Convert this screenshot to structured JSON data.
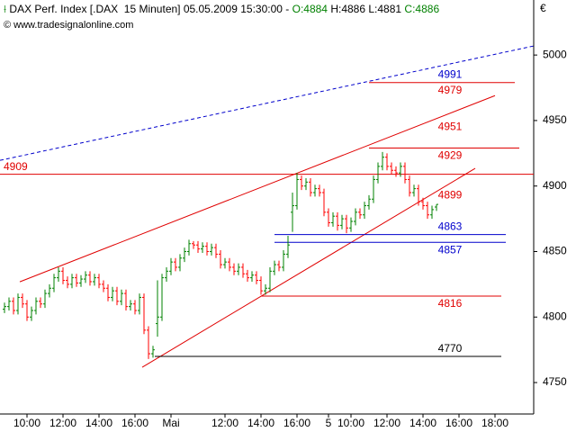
{
  "chart_data": {
    "type": "ohlc",
    "title": "DAX Perf. Index [.DAX  15 Minuten] 05.05.2009 15:30:00 -",
    "header_open": "O:4884",
    "header_high": "H:4886",
    "header_low": "L:4881",
    "header_close": "C:4886",
    "source": "www.tradesignalonline.com",
    "currency": "€",
    "up_color": "#008000",
    "down_color": "#ff0000",
    "x": [
      0,
      1,
      2,
      3,
      4,
      5,
      6,
      7,
      8,
      9,
      10,
      11,
      12,
      13,
      14,
      15,
      16,
      17,
      18,
      19,
      20,
      21,
      22,
      23,
      24,
      25,
      26,
      27,
      28,
      29,
      30,
      31,
      32,
      33,
      34,
      35,
      36,
      37,
      38,
      39,
      40,
      41,
      42,
      43,
      44,
      45,
      46,
      47,
      48,
      49,
      50,
      51,
      52,
      53,
      54,
      55,
      56,
      57,
      58,
      59,
      60,
      61,
      62,
      63,
      64,
      65,
      66,
      67,
      68,
      69,
      70,
      71,
      72,
      73,
      74,
      75,
      76,
      77,
      78,
      79,
      80,
      81,
      82,
      83,
      84,
      85,
      86,
      87,
      88,
      89,
      90,
      91,
      92,
      93,
      94,
      95,
      96
    ],
    "open": [
      4806,
      4808,
      4812,
      4805,
      4815,
      4810,
      4800,
      4805,
      4812,
      4810,
      4818,
      4822,
      4830,
      4835,
      4828,
      4825,
      4830,
      4826,
      4829,
      4832,
      4827,
      4830,
      4825,
      4822,
      4815,
      4820,
      4812,
      4818,
      4808,
      4810,
      4805,
      4815,
      4790,
      4772,
      4795,
      4800,
      4830,
      4835,
      4842,
      4838,
      4845,
      4850,
      4856,
      4855,
      4852,
      4854,
      4850,
      4853,
      4848,
      4840,
      4842,
      4838,
      4835,
      4838,
      4833,
      4830,
      4832,
      4828,
      4820,
      4822,
      4835,
      4840,
      4838,
      4848,
      4880,
      4885,
      4905,
      4900,
      4903,
      4895,
      4898,
      4895,
      4880,
      4872,
      4877,
      4870,
      4875,
      4868,
      4873,
      4880,
      4878,
      4885,
      4890,
      4905,
      4915,
      4922,
      4915,
      4912,
      4910,
      4915,
      4905,
      4895,
      4898,
      4888,
      4885,
      4878,
      4884
    ],
    "high": [
      4811,
      4815,
      4815,
      4818,
      4818,
      4813,
      4808,
      4815,
      4815,
      4821,
      4825,
      4833,
      4838,
      4838,
      4831,
      4833,
      4833,
      4832,
      4835,
      4835,
      4833,
      4833,
      4828,
      4825,
      4823,
      4823,
      4821,
      4821,
      4813,
      4813,
      4818,
      4818,
      4793,
      4778,
      4828,
      4833,
      4838,
      4845,
      4845,
      4848,
      4853,
      4859,
      4858,
      4858,
      4857,
      4857,
      4856,
      4856,
      4851,
      4845,
      4845,
      4841,
      4841,
      4841,
      4836,
      4835,
      4835,
      4831,
      4825,
      4838,
      4843,
      4843,
      4851,
      4862,
      4895,
      4910,
      4908,
      4906,
      4906,
      4901,
      4901,
      4898,
      4883,
      4880,
      4880,
      4878,
      4878,
      4876,
      4883,
      4883,
      4888,
      4893,
      4908,
      4918,
      4926,
      4925,
      4918,
      4915,
      4918,
      4918,
      4908,
      4901,
      4901,
      4891,
      4888,
      4885,
      4886
    ],
    "low": [
      4803,
      4805,
      4802,
      4802,
      4807,
      4797,
      4797,
      4802,
      4807,
      4807,
      4815,
      4819,
      4827,
      4825,
      4822,
      4822,
      4823,
      4823,
      4826,
      4824,
      4824,
      4822,
      4819,
      4812,
      4812,
      4809,
      4809,
      4805,
      4805,
      4802,
      4802,
      4787,
      4768,
      4769,
      4785,
      4797,
      4827,
      4832,
      4835,
      4835,
      4842,
      4847,
      4852,
      4849,
      4849,
      4847,
      4847,
      4845,
      4837,
      4837,
      4835,
      4832,
      4832,
      4830,
      4827,
      4827,
      4825,
      4817,
      4817,
      4819,
      4832,
      4835,
      4835,
      4845,
      4865,
      4882,
      4897,
      4897,
      4892,
      4892,
      4892,
      4877,
      4869,
      4869,
      4866,
      4867,
      4864,
      4865,
      4870,
      4875,
      4875,
      4882,
      4887,
      4902,
      4912,
      4912,
      4909,
      4907,
      4907,
      4902,
      4892,
      4892,
      4885,
      4882,
      4875,
      4875,
      4881
    ],
    "close": [
      4808,
      4812,
      4805,
      4815,
      4810,
      4800,
      4805,
      4812,
      4810,
      4818,
      4822,
      4830,
      4835,
      4828,
      4825,
      4830,
      4826,
      4829,
      4832,
      4827,
      4830,
      4825,
      4822,
      4815,
      4820,
      4812,
      4818,
      4808,
      4810,
      4805,
      4815,
      4790,
      4772,
      4775,
      4800,
      4830,
      4835,
      4842,
      4838,
      4845,
      4850,
      4856,
      4855,
      4852,
      4854,
      4850,
      4853,
      4848,
      4840,
      4842,
      4838,
      4835,
      4838,
      4833,
      4830,
      4832,
      4828,
      4820,
      4822,
      4835,
      4840,
      4838,
      4848,
      4855,
      4885,
      4905,
      4900,
      4903,
      4895,
      4898,
      4895,
      4880,
      4872,
      4877,
      4870,
      4875,
      4868,
      4873,
      4880,
      4878,
      4885,
      4890,
      4905,
      4915,
      4922,
      4915,
      4912,
      4910,
      4915,
      4905,
      4895,
      4898,
      4888,
      4885,
      4878,
      4882,
      4886
    ],
    "xlim": [
      -1,
      117.6
    ],
    "xticks": [
      {
        "value": 5,
        "label": "10:00"
      },
      {
        "value": 13,
        "label": "12:00"
      },
      {
        "value": 21,
        "label": "14:00"
      },
      {
        "value": 29,
        "label": "16:00"
      },
      {
        "value": 37,
        "label": "Mai"
      },
      {
        "value": 49,
        "label": "12:00"
      },
      {
        "value": 57,
        "label": "14:00"
      },
      {
        "value": 65,
        "label": "16:00"
      },
      {
        "value": 72,
        "label": "5"
      },
      {
        "value": 77,
        "label": "10:00"
      },
      {
        "value": 85,
        "label": "12:00"
      },
      {
        "value": 93,
        "label": "14:00"
      },
      {
        "value": 101,
        "label": "16:00"
      },
      {
        "value": 109,
        "label": "18:00"
      }
    ],
    "ylim": [
      4726,
      5042
    ],
    "yticks": [
      4750,
      4800,
      4850,
      4900,
      4950,
      5000
    ],
    "trendlines": [
      {
        "color": "#0000cc",
        "dashed": true,
        "x": [
          -1,
          117.6
        ],
        "y": [
          4919.6,
          5006.9
        ]
      },
      {
        "color": "#e00000",
        "x": [
          3.4,
          109
        ],
        "y": [
          4826.9,
          4969
        ]
      },
      {
        "color": "#e00000",
        "x": [
          30.6,
          104.6
        ],
        "y": [
          4761.7,
          4913.5
        ]
      }
    ],
    "levels": [
      {
        "value": 4991,
        "color": "#0000cc"
      },
      {
        "value": 4979,
        "color": "#e00000",
        "from": 81,
        "to": 113.4
      },
      {
        "value": 4951,
        "color": "#e00000"
      },
      {
        "value": 4929,
        "color": "#e00000",
        "from": 81,
        "to": 114.4
      },
      {
        "value": 4909,
        "color": "#e00000",
        "from": -1,
        "to": 117.6,
        "label_side": "left",
        "label_above": true
      },
      {
        "value": 4899,
        "color": "#e00000"
      },
      {
        "value": 4863,
        "color": "#0000cc",
        "from": 60,
        "to": 111.4,
        "label_above": true
      },
      {
        "value": 4857,
        "color": "#0000cc",
        "from": 60,
        "to": 111.4
      },
      {
        "value": 4816,
        "color": "#e00000",
        "from": 57,
        "to": 110.4
      },
      {
        "value": 4770,
        "color": "#000000",
        "from": 33.4,
        "to": 110.4,
        "label_above": true
      }
    ]
  }
}
